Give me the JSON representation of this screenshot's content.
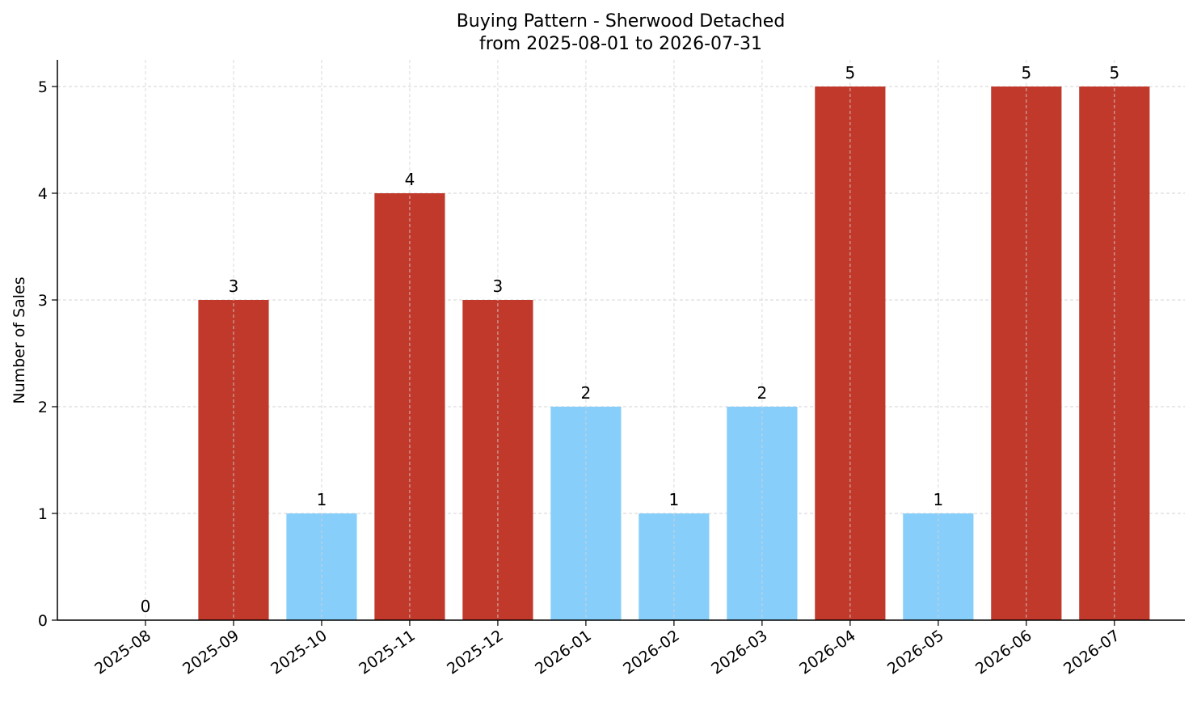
{
  "chart_data": {
    "type": "bar",
    "title": "Buying Pattern - Sherwood Detached",
    "subtitle": "from 2025-08-01 to 2026-07-31",
    "xlabel": "",
    "ylabel": "Number of Sales",
    "categories": [
      "2025-08",
      "2025-09",
      "2025-10",
      "2025-11",
      "2025-12",
      "2026-01",
      "2026-02",
      "2026-03",
      "2026-04",
      "2026-05",
      "2026-06",
      "2026-07"
    ],
    "values": [
      0,
      3,
      1,
      4,
      3,
      2,
      1,
      2,
      5,
      1,
      5,
      5
    ],
    "bar_colors": [
      "#c0392b",
      "#c0392b",
      "#87cefa",
      "#c0392b",
      "#c0392b",
      "#87cefa",
      "#87cefa",
      "#87cefa",
      "#c0392b",
      "#87cefa",
      "#c0392b",
      "#c0392b"
    ],
    "ylim": [
      0,
      5.25
    ],
    "yticks": [
      0,
      1,
      2,
      3,
      4,
      5
    ],
    "grid": true,
    "legend": "none",
    "colors": {
      "high": "#c0392b",
      "low": "#87cefa",
      "grid": "#d3d3d3",
      "axis": "#000000"
    }
  }
}
